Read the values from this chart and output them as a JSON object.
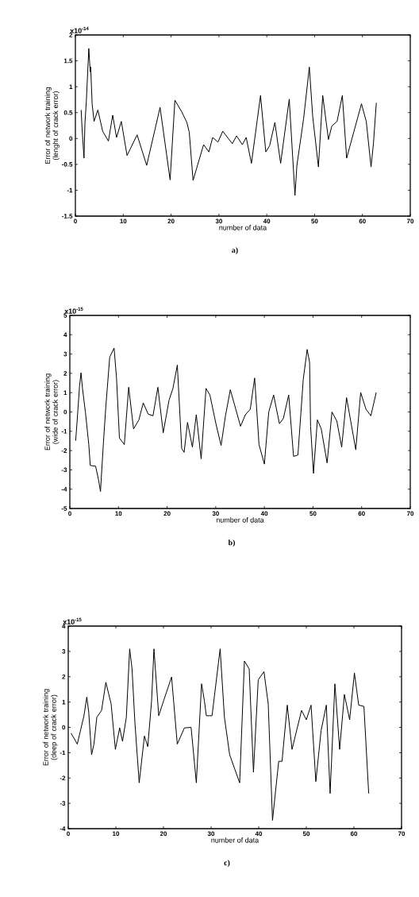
{
  "chart_data": [
    {
      "type": "line",
      "xlabel": "number of data",
      "ylabel": "Error of network training (lenght of crack error)",
      "annotations": [
        "x10$^{-14}$",
        "a)"
      ],
      "xlim": [
        0,
        70
      ],
      "xticks": [
        0,
        10,
        20,
        30,
        40,
        50,
        60,
        70
      ],
      "ylim": [
        -1.5,
        2
      ],
      "yticks": [
        -1.5,
        -1,
        -0.5,
        0,
        0.5,
        1,
        1.5,
        2
      ],
      "color": "#000000",
      "x": [
        1.2,
        1.4,
        1.8,
        2.0,
        2.3,
        2.8,
        3.1,
        3.2,
        3.5,
        3.9,
        4.7,
        5.7,
        6.9,
        7.8,
        8.6,
        9.6,
        10.8,
        12.9,
        14.9,
        17.7,
        19.8,
        20.8,
        22.2,
        23.3,
        23.8,
        24.6,
        26.8,
        27.9,
        28.7,
        29.8,
        30.8,
        32.8,
        33.7,
        34.9,
        35.7,
        36.8,
        38.7,
        39.8,
        40.6,
        41.7,
        42.9,
        44.7,
        45.9,
        46.3,
        47.7,
        48.9,
        49.6,
        50.8,
        51.7,
        52.9,
        53.6,
        54.7,
        55.8,
        56.7,
        59.8,
        60.8,
        61.8,
        62.3,
        62.9
      ],
      "values": [
        0.55,
        0.19,
        -0.38,
        0.29,
        0.74,
        1.74,
        1.29,
        1.38,
        0.67,
        0.33,
        0.55,
        0.14,
        -0.05,
        0.45,
        0.02,
        0.33,
        -0.33,
        0.07,
        -0.52,
        0.6,
        -0.8,
        0.74,
        0.52,
        0.31,
        0.12,
        -0.81,
        -0.12,
        -0.26,
        0.02,
        -0.07,
        0.14,
        -0.1,
        0.05,
        -0.12,
        0.02,
        -0.48,
        0.83,
        -0.26,
        -0.14,
        0.31,
        -0.48,
        0.76,
        -1.1,
        -0.52,
        0.38,
        1.38,
        0.43,
        -0.55,
        0.83,
        -0.02,
        0.24,
        0.33,
        0.83,
        -0.38,
        0.67,
        0.33,
        -0.55,
        -0.1,
        0.69
      ]
    },
    {
      "type": "line",
      "xlabel": "number of data",
      "ylabel": "Error of network training (wide of crack error)",
      "annotations": [
        "x10$^{-15}$",
        "b)"
      ],
      "xlim": [
        0,
        70
      ],
      "xticks": [
        0,
        10,
        20,
        30,
        40,
        50,
        60,
        70
      ],
      "ylim": [
        -5,
        5
      ],
      "yticks": [
        -5,
        -4,
        -3,
        -2,
        -1,
        0,
        1,
        2,
        3,
        4,
        5
      ],
      "color": "#000000",
      "x": [
        1.2,
        1.5,
        2.0,
        2.3,
        2.6,
        3.2,
        3.9,
        4.2,
        5.3,
        5.9,
        6.3,
        6.9,
        7.4,
        8.2,
        9.1,
        9.6,
        10.2,
        11.2,
        12.1,
        13.1,
        14.2,
        15.1,
        16.1,
        17.1,
        18.1,
        19.2,
        20.4,
        21.2,
        22.1,
        23.0,
        23.5,
        24.2,
        25.2,
        26.0,
        27.0,
        28.0,
        28.8,
        30.1,
        31.1,
        32.0,
        33.0,
        35.1,
        36.1,
        37.1,
        38.0,
        38.9,
        40.0,
        40.9,
        41.9,
        43.1,
        43.9,
        45.0,
        46.0,
        46.9,
        48.0,
        48.8,
        49.3,
        49.5,
        50.1,
        50.9,
        51.7,
        52.9,
        53.9,
        54.9,
        55.9,
        56.9,
        57.9,
        58.8,
        59.8,
        60.9,
        61.9,
        63.0
      ],
      "values": [
        -1.49,
        -0.47,
        1.35,
        2.03,
        1.22,
        0,
        -1.69,
        -2.77,
        -2.81,
        -3.51,
        -4.12,
        -1.62,
        0.27,
        2.84,
        3.31,
        1.76,
        -1.35,
        -1.69,
        1.28,
        -0.88,
        -0.41,
        0.47,
        -0.11,
        -0.2,
        1.28,
        -1.08,
        0.61,
        1.22,
        2.43,
        -1.89,
        -2.09,
        -0.54,
        -1.82,
        -0.14,
        -2.43,
        1.22,
        0.88,
        -0.68,
        -1.73,
        -0.2,
        1.15,
        -0.74,
        -0.14,
        0.14,
        1.76,
        -1.69,
        -2.7,
        0,
        0.88,
        -0.61,
        -0.34,
        0.88,
        -2.3,
        -2.23,
        1.69,
        3.24,
        2.57,
        -0.74,
        -3.18,
        -0.41,
        -0.88,
        -2.64,
        0,
        -0.47,
        -1.82,
        0.74,
        -0.68,
        -1.96,
        1.01,
        0.14,
        -0.2,
        1.01
      ]
    },
    {
      "type": "line",
      "xlabel": "number of data",
      "ylabel": "Error of network training (deep of crack error)",
      "annotations": [
        "x10$^{-15}$",
        "c)"
      ],
      "xlim": [
        0,
        70
      ],
      "xticks": [
        0,
        10,
        20,
        30,
        40,
        50,
        60,
        70
      ],
      "ylim": [
        -4,
        4
      ],
      "yticks": [
        -4,
        -3,
        -2,
        -1,
        0,
        1,
        2,
        3,
        4
      ],
      "color": "#000000",
      "x": [
        0.6,
        1.9,
        3.3,
        3.9,
        4.3,
        4.9,
        5.4,
        6.0,
        7.0,
        7.9,
        9.0,
        9.9,
        10.8,
        11.4,
        12.2,
        12.9,
        13.4,
        14.0,
        14.9,
        16.0,
        16.7,
        17.5,
        18.0,
        19.0,
        20.1,
        21.7,
        22.9,
        24.4,
        25.8,
        26.9,
        28.0,
        28.6,
        29.0,
        30.2,
        31.9,
        32.8,
        33.9,
        36.0,
        37.0,
        38.0,
        38.9,
        39.9,
        41.1,
        42.0,
        42.9,
        43.4,
        44.2,
        44.9,
        46.0,
        47.0,
        48.1,
        49.0,
        50.0,
        51.0,
        52.0,
        53.1,
        54.2,
        55.0,
        56.0,
        57.0,
        58.0,
        59.1,
        60.1,
        61.0,
        62.1,
        63.1
      ],
      "values": [
        -0.23,
        -0.66,
        0.46,
        1.2,
        0.61,
        -1.08,
        -0.66,
        0.4,
        0.67,
        1.78,
        0.93,
        -0.87,
        -0.02,
        -0.55,
        0.4,
        3.1,
        2.31,
        0.19,
        -2.19,
        -0.34,
        -0.76,
        1.04,
        3.1,
        0.46,
        1.09,
        1.99,
        -0.66,
        -0.02,
        0,
        -2.19,
        1.72,
        1.04,
        0.46,
        0.46,
        3.1,
        0.4,
        -1.08,
        -2.19,
        2.62,
        2.31,
        -1.77,
        1.88,
        2.2,
        0.93,
        -3.67,
        -2.77,
        -1.34,
        -1.34,
        0.88,
        -0.87,
        -0.02,
        0.67,
        0.3,
        0.88,
        -2.14,
        -0.13,
        0.88,
        -2.61,
        1.72,
        -0.87,
        1.3,
        0.3,
        2.15,
        0.88,
        0.83,
        -2.61
      ]
    }
  ]
}
